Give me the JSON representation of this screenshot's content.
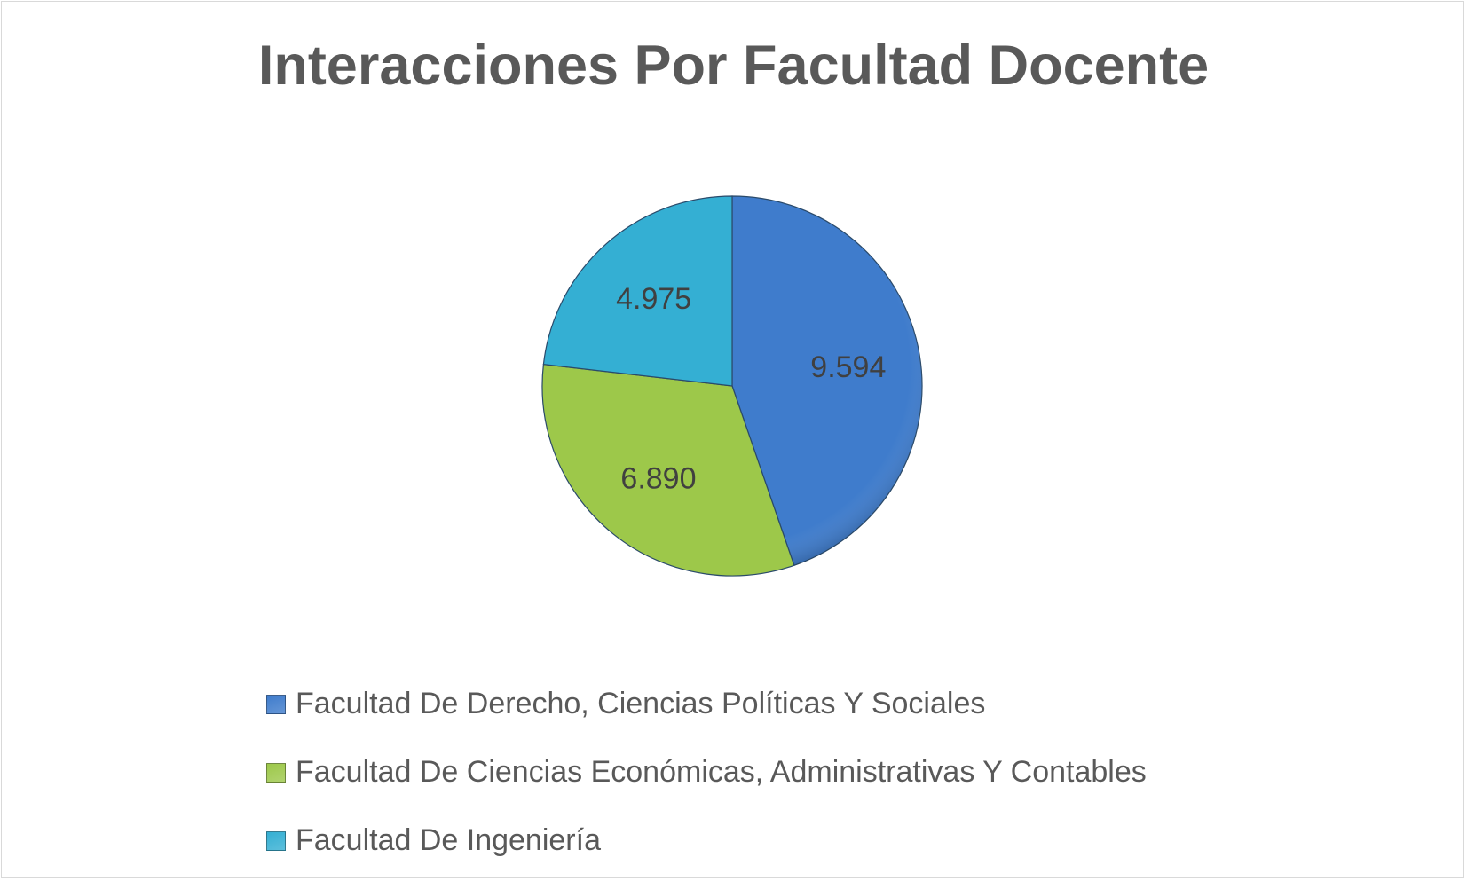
{
  "chart_data": {
    "type": "pie",
    "title": "Interacciones Por Facultad Docente",
    "categories": [
      "Facultad De Derecho, Ciencias Políticas Y Sociales",
      "Facultad De Ciencias Económicas, Administrativas Y Contables",
      "Facultad De Ingeniería"
    ],
    "values": [
      9594,
      6890,
      4975
    ],
    "data_labels": [
      "9.594",
      "6.890",
      "4.975"
    ],
    "colors": [
      "#3f7ccc",
      "#9dc84a",
      "#34afd3"
    ],
    "legend_position": "bottom"
  }
}
